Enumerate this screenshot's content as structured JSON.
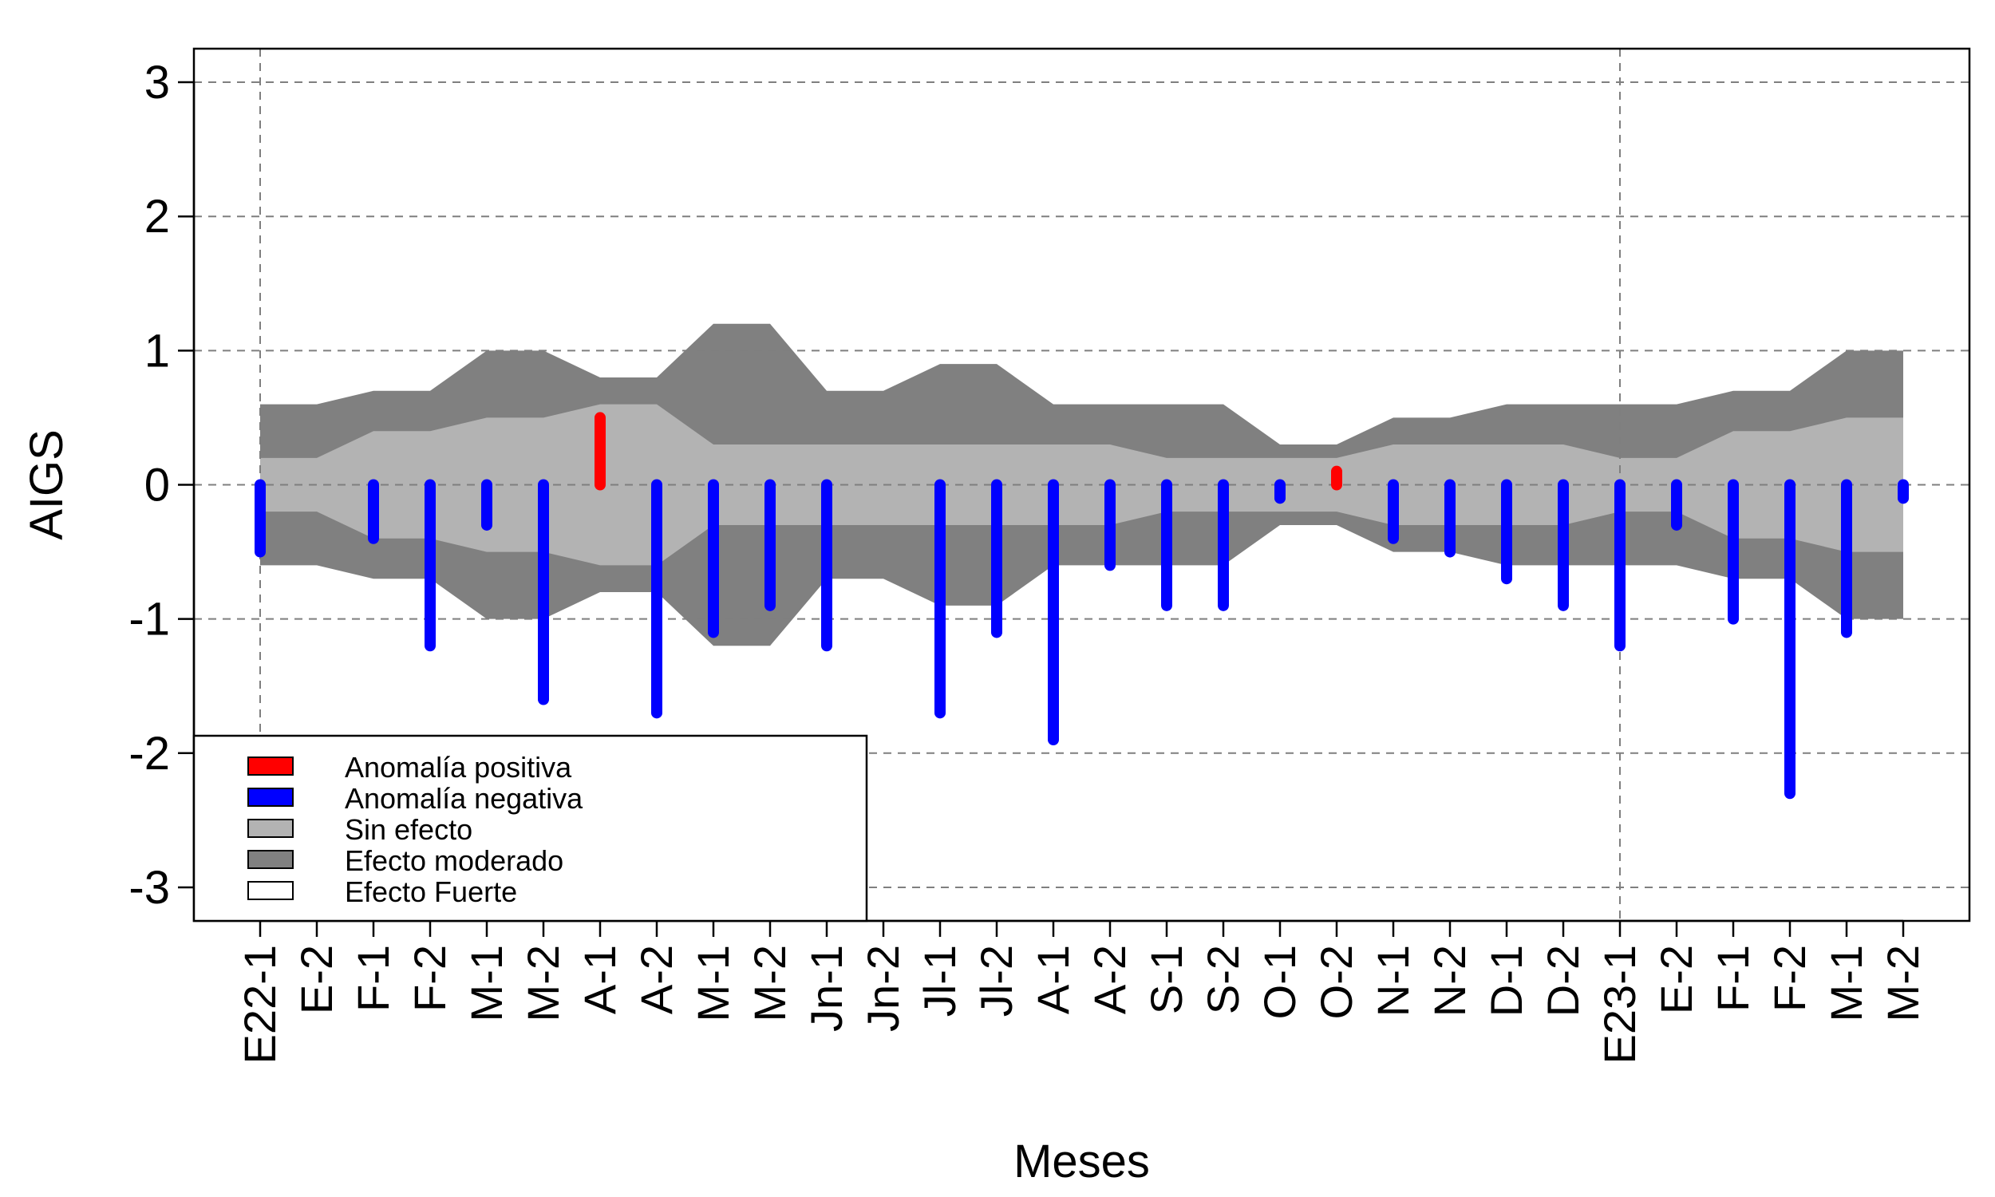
{
  "chart_data": {
    "type": "bar",
    "xlabel": "Meses",
    "ylabel": "AIGS",
    "ylim": [
      -3.25,
      3.25
    ],
    "yticks": [
      3,
      2,
      1,
      0,
      -1,
      -2,
      -3
    ],
    "ytick_labels": [
      "3",
      "2",
      "1",
      "0",
      "-1",
      "-2",
      "-3"
    ],
    "grid": true,
    "categories": [
      "E22-1",
      "E-2",
      "F-1",
      "F-2",
      "M-1",
      "M-2",
      "A-1",
      "A-2",
      "M-1",
      "M-2",
      "Jn-1",
      "Jn-2",
      "Jl-1",
      "Jl-2",
      "A-1",
      "A-2",
      "S-1",
      "S-2",
      "O-1",
      "O-2",
      "N-1",
      "N-2",
      "D-1",
      "D-2",
      "E23-1",
      "E-2",
      "F-1",
      "F-2",
      "M-1",
      "M-2"
    ],
    "values": [
      -0.5,
      null,
      -0.4,
      -1.2,
      -0.3,
      -1.6,
      0.5,
      -1.7,
      -1.1,
      -0.9,
      -1.2,
      null,
      -1.7,
      -1.1,
      -1.9,
      -0.6,
      -0.9,
      -0.9,
      -0.1,
      0.1,
      -0.4,
      -0.5,
      -0.7,
      -0.9,
      -1.2,
      -0.3,
      -1.0,
      -2.3,
      -1.1,
      -0.1
    ],
    "bands": {
      "sin_efecto": [
        0.2,
        0.2,
        0.4,
        0.4,
        0.5,
        0.5,
        0.6,
        0.6,
        0.3,
        0.3,
        0.3,
        0.3,
        0.3,
        0.3,
        0.3,
        0.3,
        0.2,
        0.2,
        0.2,
        0.2,
        0.3,
        0.3,
        0.3,
        0.3,
        0.2,
        0.2,
        0.4,
        0.4,
        0.5,
        0.5
      ],
      "efecto_moderado": [
        0.6,
        0.6,
        0.7,
        0.7,
        1.0,
        1.0,
        0.8,
        0.8,
        1.2,
        1.2,
        0.7,
        0.7,
        0.9,
        0.9,
        0.6,
        0.6,
        0.6,
        0.6,
        0.3,
        0.3,
        0.5,
        0.5,
        0.6,
        0.6,
        0.6,
        0.6,
        0.7,
        0.7,
        1.0,
        1.0
      ]
    },
    "vertical_lines_at": [
      "E22-1",
      "E23-1"
    ],
    "legend": {
      "position": "bottom-left",
      "entries": [
        {
          "label": "Anomalía positiva",
          "color": "#ff0000"
        },
        {
          "label": "Anomalía negativa",
          "color": "#0000ff"
        },
        {
          "label": "Sin efecto",
          "color": "#b3b3b3"
        },
        {
          "label": "Efecto moderado",
          "color": "#808080"
        },
        {
          "label": "Efecto Fuerte",
          "color": "#ffffff"
        }
      ]
    },
    "colors": {
      "positive": "#ff0000",
      "negative": "#0000ff",
      "sin_efecto": "#b3b3b3",
      "efecto_moderado": "#808080",
      "grid": "#7f7f7f"
    }
  }
}
